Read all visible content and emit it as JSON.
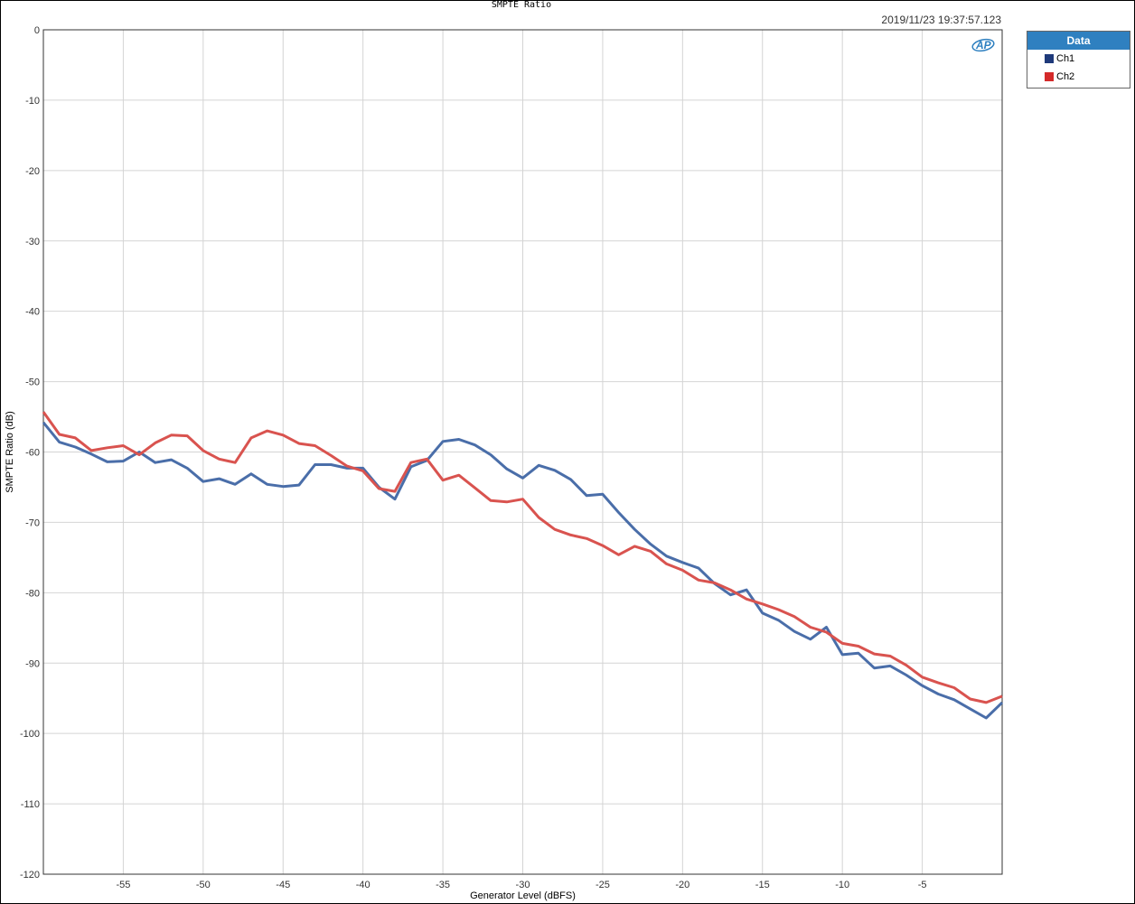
{
  "chart_data": {
    "type": "line",
    "title": "SMPTE Ratio",
    "timestamp": "2019/11/23 19:37:57.123",
    "xlabel": "Generator Level (dBFS)",
    "ylabel": "SMPTE Ratio (dB)",
    "xlim": [
      -60,
      0
    ],
    "ylim": [
      -120,
      0
    ],
    "x_ticks": [
      -55,
      -50,
      -45,
      -40,
      -35,
      -30,
      -25,
      -20,
      -15,
      -10,
      -5
    ],
    "y_ticks": [
      0,
      -10,
      -20,
      -30,
      -40,
      -50,
      -60,
      -70,
      -80,
      -90,
      -100,
      -110,
      -120
    ],
    "grid": true,
    "legend_title": "Data",
    "legend_position": "right",
    "series": [
      {
        "name": "Ch1",
        "color": "#4a6ea9",
        "swatch": "#1f3a7a",
        "points": [
          [
            -60,
            -55.8
          ],
          [
            -59,
            -58.6
          ],
          [
            -58,
            -59.3
          ],
          [
            -57,
            -60.3
          ],
          [
            -56,
            -61.4
          ],
          [
            -55,
            -61.3
          ],
          [
            -54,
            -60.0
          ],
          [
            -53,
            -61.5
          ],
          [
            -52,
            -61.1
          ],
          [
            -51,
            -62.3
          ],
          [
            -50,
            -64.2
          ],
          [
            -49,
            -63.8
          ],
          [
            -48,
            -64.6
          ],
          [
            -47,
            -63.1
          ],
          [
            -46,
            -64.6
          ],
          [
            -45,
            -64.9
          ],
          [
            -44,
            -64.7
          ],
          [
            -43,
            -61.8
          ],
          [
            -42,
            -61.8
          ],
          [
            -41,
            -62.3
          ],
          [
            -40,
            -62.3
          ],
          [
            -39,
            -65.0
          ],
          [
            -38,
            -66.7
          ],
          [
            -37,
            -62.1
          ],
          [
            -36,
            -61.2
          ],
          [
            -35,
            -58.5
          ],
          [
            -34,
            -58.2
          ],
          [
            -33,
            -59.0
          ],
          [
            -32,
            -60.4
          ],
          [
            -31,
            -62.4
          ],
          [
            -30,
            -63.7
          ],
          [
            -29,
            -61.9
          ],
          [
            -28,
            -62.6
          ],
          [
            -27,
            -63.9
          ],
          [
            -26,
            -66.2
          ],
          [
            -25,
            -66.0
          ],
          [
            -24,
            -68.6
          ],
          [
            -23,
            -71.0
          ],
          [
            -22,
            -73.1
          ],
          [
            -21,
            -74.8
          ],
          [
            -20,
            -75.7
          ],
          [
            -19,
            -76.5
          ],
          [
            -18,
            -78.7
          ],
          [
            -17,
            -80.3
          ],
          [
            -16,
            -79.6
          ],
          [
            -15,
            -82.9
          ],
          [
            -14,
            -83.9
          ],
          [
            -13,
            -85.5
          ],
          [
            -12,
            -86.6
          ],
          [
            -11,
            -84.9
          ],
          [
            -10,
            -88.8
          ],
          [
            -9,
            -88.6
          ],
          [
            -8,
            -90.7
          ],
          [
            -7,
            -90.4
          ],
          [
            -6,
            -91.7
          ],
          [
            -5,
            -93.2
          ],
          [
            -4,
            -94.4
          ],
          [
            -3,
            -95.2
          ],
          [
            -2,
            -96.5
          ],
          [
            -1,
            -97.8
          ],
          [
            0,
            -95.6
          ]
        ]
      },
      {
        "name": "Ch2",
        "color": "#d9534f",
        "swatch": "#d42a2a",
        "points": [
          [
            -60,
            -54.3
          ],
          [
            -59,
            -57.5
          ],
          [
            -58,
            -58.0
          ],
          [
            -57,
            -59.8
          ],
          [
            -56,
            -59.4
          ],
          [
            -55,
            -59.1
          ],
          [
            -54,
            -60.4
          ],
          [
            -53,
            -58.7
          ],
          [
            -52,
            -57.6
          ],
          [
            -51,
            -57.7
          ],
          [
            -50,
            -59.8
          ],
          [
            -49,
            -61.0
          ],
          [
            -48,
            -61.5
          ],
          [
            -47,
            -58.0
          ],
          [
            -46,
            -57.0
          ],
          [
            -45,
            -57.6
          ],
          [
            -44,
            -58.8
          ],
          [
            -43,
            -59.1
          ],
          [
            -42,
            -60.5
          ],
          [
            -41,
            -62.0
          ],
          [
            -40,
            -62.7
          ],
          [
            -39,
            -65.2
          ],
          [
            -38,
            -65.6
          ],
          [
            -37,
            -61.5
          ],
          [
            -36,
            -61.0
          ],
          [
            -35,
            -64.0
          ],
          [
            -34,
            -63.3
          ],
          [
            -33,
            -65.1
          ],
          [
            -32,
            -66.9
          ],
          [
            -31,
            -67.1
          ],
          [
            -30,
            -66.7
          ],
          [
            -29,
            -69.3
          ],
          [
            -28,
            -71.0
          ],
          [
            -27,
            -71.8
          ],
          [
            -26,
            -72.3
          ],
          [
            -25,
            -73.3
          ],
          [
            -24,
            -74.6
          ],
          [
            -23,
            -73.4
          ],
          [
            -22,
            -74.1
          ],
          [
            -21,
            -75.9
          ],
          [
            -20,
            -76.8
          ],
          [
            -19,
            -78.2
          ],
          [
            -18,
            -78.6
          ],
          [
            -17,
            -79.6
          ],
          [
            -16,
            -80.9
          ],
          [
            -15,
            -81.6
          ],
          [
            -14,
            -82.4
          ],
          [
            -13,
            -83.4
          ],
          [
            -12,
            -84.9
          ],
          [
            -11,
            -85.6
          ],
          [
            -10,
            -87.2
          ],
          [
            -9,
            -87.6
          ],
          [
            -8,
            -88.7
          ],
          [
            -7,
            -89.0
          ],
          [
            -6,
            -90.3
          ],
          [
            -5,
            -92.0
          ],
          [
            -4,
            -92.8
          ],
          [
            -3,
            -93.5
          ],
          [
            -2,
            -95.1
          ],
          [
            -1,
            -95.6
          ],
          [
            0,
            -94.7
          ]
        ]
      }
    ]
  }
}
